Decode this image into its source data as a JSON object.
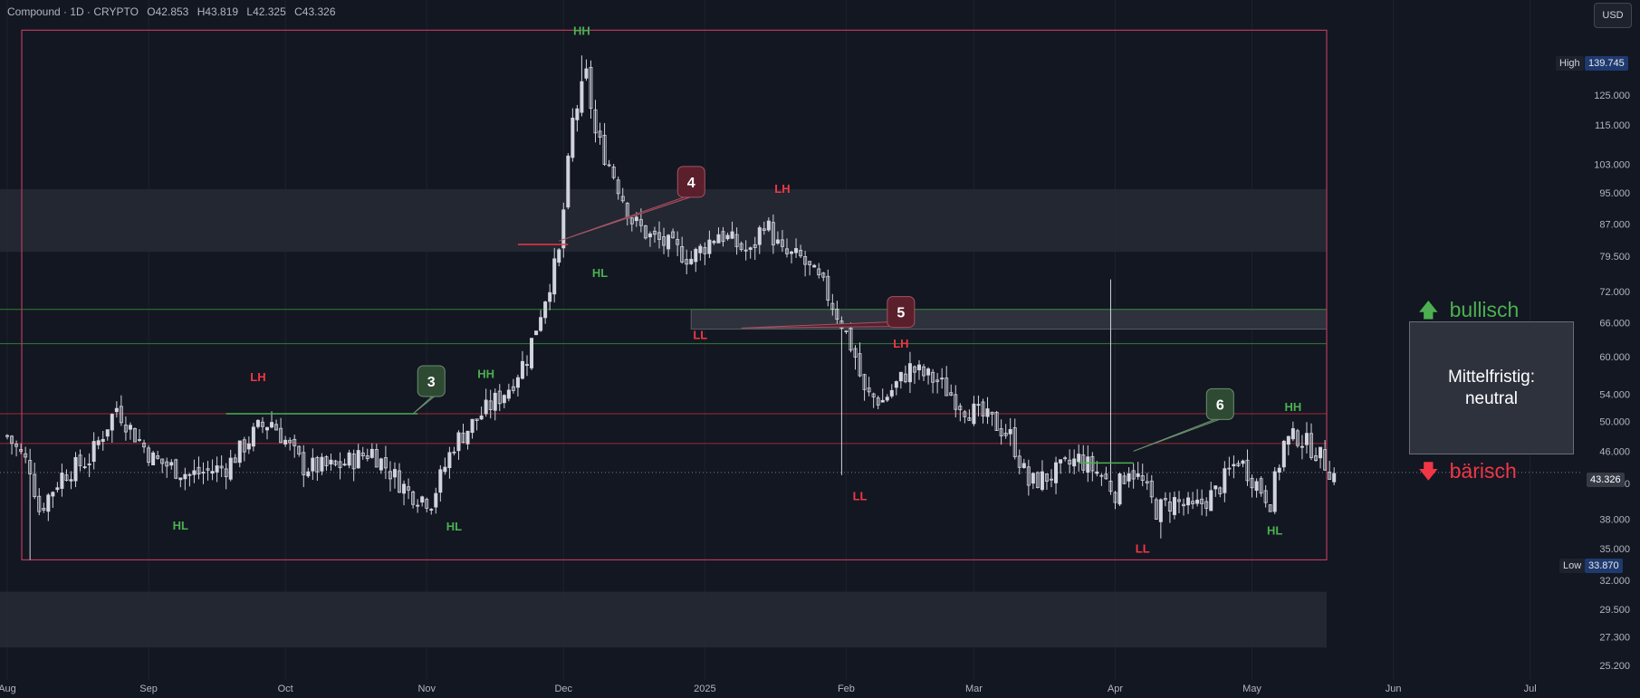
{
  "header": {
    "symbol": "Compound · 1D · CRYPTO",
    "open": "O42.853",
    "high": "H43.819",
    "low": "L42.325",
    "close": "C43.326"
  },
  "currency_button": "USD",
  "price_tags": {
    "high_label": "High",
    "high_value": "139.745",
    "low_label": "Low",
    "low_value": "33.870",
    "last_value": "43.326"
  },
  "panel": {
    "bull_label": "bullisch",
    "bear_label": "bärisch",
    "text_line1": "Mittelfristig:",
    "text_line2": "neutral"
  },
  "colors": {
    "background": "#131722",
    "candle": "#d1d4dc",
    "bull_green": "#4caf50",
    "bear_red": "#f23645",
    "frame": "#b83a5a"
  },
  "chart_data": {
    "type": "candlestick",
    "y_scale": "log",
    "ylim": [
      24.2,
      160
    ],
    "y_ticks": [
      "125.000",
      "115.000",
      "103.000",
      "95.000",
      "87.000",
      "79.500",
      "72.000",
      "66.000",
      "60.000",
      "54.000",
      "50.000",
      "46.000",
      "42.000",
      "38.000",
      "35.000",
      "32.000",
      "29.500",
      "27.300",
      "25.200"
    ],
    "x_ticks": [
      {
        "label": "Aug",
        "day": 0
      },
      {
        "label": "Sep",
        "day": 31
      },
      {
        "label": "Oct",
        "day": 61
      },
      {
        "label": "Nov",
        "day": 92
      },
      {
        "label": "Dec",
        "day": 122
      },
      {
        "label": "2025",
        "day": 153
      },
      {
        "label": "Feb",
        "day": 184
      },
      {
        "label": "Mar",
        "day": 212
      },
      {
        "label": "Apr",
        "day": 243
      },
      {
        "label": "May",
        "day": 273
      },
      {
        "label": "Jun",
        "day": 304
      },
      {
        "label": "Jul",
        "day": 334
      }
    ],
    "close_path": [
      [
        0,
        48
      ],
      [
        5,
        44
      ],
      [
        7,
        39
      ],
      [
        12,
        43
      ],
      [
        18,
        45
      ],
      [
        24,
        52
      ],
      [
        27,
        49
      ],
      [
        32,
        45
      ],
      [
        40,
        43
      ],
      [
        48,
        44
      ],
      [
        55,
        49
      ],
      [
        58,
        50
      ],
      [
        65,
        44
      ],
      [
        72,
        44
      ],
      [
        80,
        46
      ],
      [
        88,
        41
      ],
      [
        93,
        40
      ],
      [
        98,
        47
      ],
      [
        104,
        51
      ],
      [
        110,
        55
      ],
      [
        114,
        60
      ],
      [
        118,
        71
      ],
      [
        121,
        80
      ],
      [
        124,
        116
      ],
      [
        127,
        132
      ],
      [
        129,
        112
      ],
      [
        133,
        100
      ],
      [
        137,
        88
      ],
      [
        141,
        84
      ],
      [
        145,
        82
      ],
      [
        150,
        79
      ],
      [
        156,
        85
      ],
      [
        163,
        80
      ],
      [
        166,
        88
      ],
      [
        170,
        80
      ],
      [
        174,
        79
      ],
      [
        179,
        73
      ],
      [
        183,
        66
      ],
      [
        186,
        60
      ],
      [
        188,
        54
      ],
      [
        192,
        53
      ],
      [
        198,
        58
      ],
      [
        204,
        56
      ],
      [
        210,
        52
      ],
      [
        216,
        50
      ],
      [
        220,
        48
      ],
      [
        224,
        42
      ],
      [
        229,
        43
      ],
      [
        235,
        45
      ],
      [
        240,
        43
      ],
      [
        243,
        41
      ],
      [
        246,
        44
      ],
      [
        249,
        42
      ],
      [
        252,
        39
      ],
      [
        256,
        40
      ],
      [
        260,
        39
      ],
      [
        265,
        41
      ],
      [
        270,
        45
      ],
      [
        274,
        42
      ],
      [
        277,
        40
      ],
      [
        280,
        47
      ],
      [
        283,
        48
      ],
      [
        287,
        46
      ],
      [
        291,
        43
      ]
    ],
    "wick_spikes": [
      {
        "day": 5,
        "low": 33.9
      },
      {
        "day": 126,
        "high": 139.745
      },
      {
        "day": 183,
        "low": 43.0
      },
      {
        "day": 242,
        "high": 74.5
      },
      {
        "day": 253,
        "low": 36.0
      }
    ],
    "swing_labels": [
      {
        "text": "HH",
        "day": 126,
        "price": 148,
        "kind": "bull"
      },
      {
        "text": "HL",
        "day": 130,
        "price": 75,
        "kind": "bull"
      },
      {
        "text": "LH",
        "day": 170,
        "price": 95,
        "kind": "bear"
      },
      {
        "text": "LL",
        "day": 152,
        "price": 63,
        "kind": "bear"
      },
      {
        "text": "LH",
        "day": 55,
        "price": 56,
        "kind": "bear"
      },
      {
        "text": "HL",
        "day": 38,
        "price": 36.9,
        "kind": "bull"
      },
      {
        "text": "HH",
        "day": 105,
        "price": 56.5,
        "kind": "bull"
      },
      {
        "text": "HL",
        "day": 98,
        "price": 36.8,
        "kind": "bull"
      },
      {
        "text": "LH",
        "day": 196,
        "price": 61.5,
        "kind": "bear"
      },
      {
        "text": "LL",
        "day": 187,
        "price": 40.1,
        "kind": "bear"
      },
      {
        "text": "LL",
        "day": 249,
        "price": 34.6,
        "kind": "bear"
      },
      {
        "text": "HH",
        "day": 282,
        "price": 51.5,
        "kind": "bull"
      },
      {
        "text": "HL",
        "day": 278,
        "price": 36.4,
        "kind": "bull"
      }
    ],
    "markers": [
      {
        "text": "3",
        "day": 93,
        "price": 56,
        "kind": "bull"
      },
      {
        "text": "4",
        "day": 150,
        "price": 98,
        "kind": "bear"
      },
      {
        "text": "5",
        "day": 196,
        "price": 68,
        "kind": "bear"
      },
      {
        "text": "6",
        "day": 266,
        "price": 52.5,
        "kind": "bull"
      }
    ]
  }
}
